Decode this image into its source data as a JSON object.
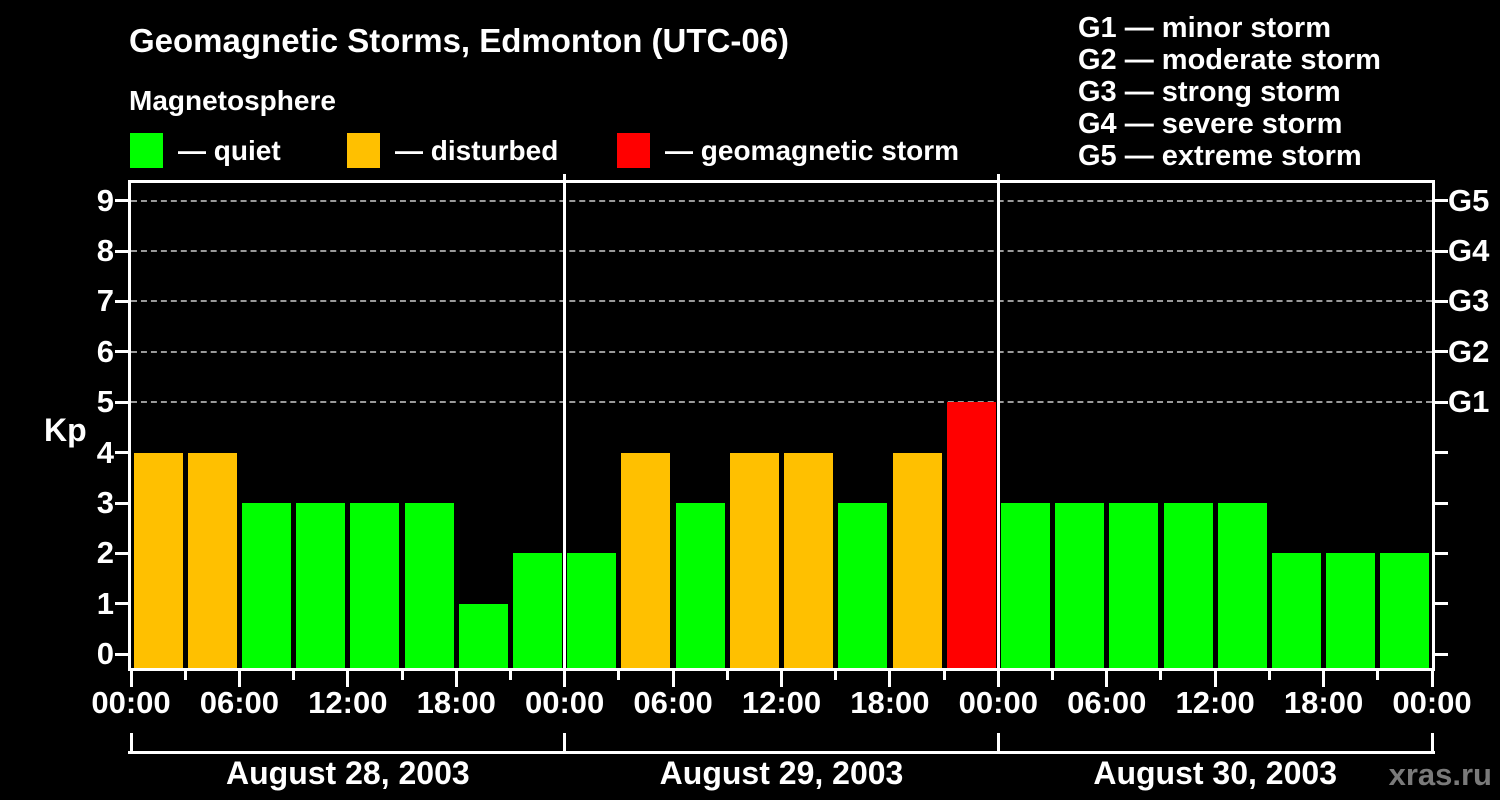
{
  "header": {
    "title": "Geomagnetic Storms, Edmonton (UTC-06)",
    "subtitle": "Magnetosphere",
    "watermark": "xras.ru"
  },
  "legend": {
    "items": [
      {
        "key": "quiet",
        "label": "— quiet",
        "color": "#00ff00"
      },
      {
        "key": "disturbed",
        "label": "— disturbed",
        "color": "#ffc000"
      },
      {
        "key": "storm",
        "label": "— geomagnetic storm",
        "color": "#ff0000"
      }
    ]
  },
  "g_legend": {
    "items": [
      {
        "label": "G1 — minor storm"
      },
      {
        "label": "G2 — moderate storm"
      },
      {
        "label": "G3 — strong storm"
      },
      {
        "label": "G4 — severe storm"
      },
      {
        "label": "G5 — extreme storm"
      }
    ]
  },
  "chart_data": {
    "type": "bar",
    "title": "Geomagnetic Storms, Edmonton (UTC-06)",
    "ylabel": "Kp",
    "ylim": [
      0,
      9
    ],
    "y_ticks": [
      0,
      1,
      2,
      3,
      4,
      5,
      6,
      7,
      8,
      9
    ],
    "gridlines_at": [
      5,
      6,
      7,
      8,
      9
    ],
    "grid": "dashed horizontal lines at Kp 5 through 9",
    "right_axis": [
      {
        "kp": 5,
        "label": "G1"
      },
      {
        "kp": 6,
        "label": "G2"
      },
      {
        "kp": 7,
        "label": "G3"
      },
      {
        "kp": 8,
        "label": "G4"
      },
      {
        "kp": 9,
        "label": "G5"
      }
    ],
    "hours_per_bar": 3,
    "x_hour_tick_labels": [
      "00:00",
      "06:00",
      "12:00",
      "18:00",
      "00:00",
      "06:00",
      "12:00",
      "18:00",
      "00:00",
      "06:00",
      "12:00",
      "18:00",
      "00:00"
    ],
    "days": [
      {
        "date": "August 28, 2003",
        "kp_values": [
          4,
          4,
          3,
          3,
          3,
          3,
          1,
          2
        ],
        "statuses": [
          "disturbed",
          "disturbed",
          "quiet",
          "quiet",
          "quiet",
          "quiet",
          "quiet",
          "quiet"
        ]
      },
      {
        "date": "August 29, 2003",
        "kp_values": [
          2,
          4,
          3,
          4,
          4,
          3,
          4,
          5
        ],
        "statuses": [
          "quiet",
          "disturbed",
          "quiet",
          "disturbed",
          "disturbed",
          "quiet",
          "disturbed",
          "storm"
        ]
      },
      {
        "date": "August 30, 2003",
        "kp_values": [
          3,
          3,
          3,
          3,
          3,
          2,
          2,
          2
        ],
        "statuses": [
          "quiet",
          "quiet",
          "quiet",
          "quiet",
          "quiet",
          "quiet",
          "quiet",
          "quiet"
        ]
      }
    ],
    "status_colors": {
      "quiet": "#00ff00",
      "disturbed": "#ffc000",
      "storm": "#ff0000"
    }
  }
}
